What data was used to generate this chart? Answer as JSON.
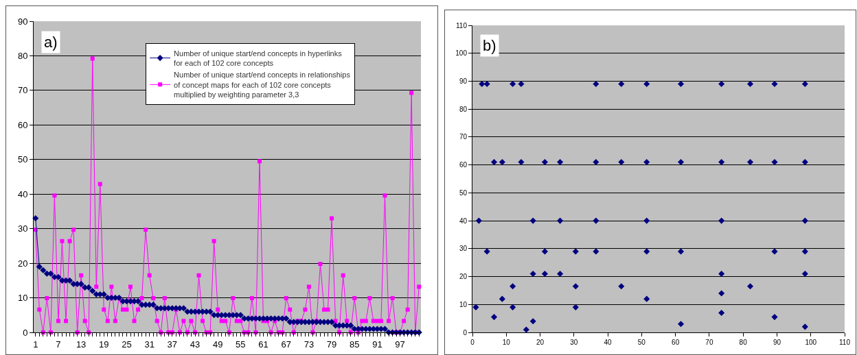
{
  "chart_data": [
    {
      "type": "line",
      "title": "a)",
      "categories": [
        "1",
        null,
        null,
        null,
        null,
        null,
        "7",
        null,
        null,
        null,
        null,
        null,
        "13",
        null,
        null,
        null,
        null,
        null,
        "19",
        null,
        null,
        null,
        null,
        null,
        "25",
        null,
        null,
        null,
        null,
        null,
        "31",
        null,
        null,
        null,
        null,
        null,
        "37",
        null,
        null,
        null,
        null,
        null,
        "43",
        null,
        null,
        null,
        null,
        null,
        "49",
        null,
        null,
        null,
        null,
        null,
        "55",
        null,
        null,
        null,
        null,
        null,
        "61",
        null,
        null,
        null,
        null,
        null,
        "67",
        null,
        null,
        null,
        null,
        null,
        "73",
        null,
        null,
        null,
        null,
        null,
        "79",
        null,
        null,
        null,
        null,
        null,
        "85",
        null,
        null,
        null,
        null,
        null,
        "91",
        null,
        null,
        null,
        null,
        null,
        "97",
        null,
        null,
        null,
        null,
        null
      ],
      "series": [
        {
          "name": "Number of unique start/end concepts in hyperlinks for each of 102 core concepts",
          "color": "#000080",
          "marker": "diamond",
          "values": [
            33,
            19,
            18,
            17,
            17,
            16,
            16,
            15,
            15,
            15,
            14,
            14,
            14,
            13,
            13,
            12,
            11,
            11,
            11,
            10,
            10,
            10,
            10,
            9,
            9,
            9,
            9,
            9,
            8,
            8,
            8,
            8,
            7,
            7,
            7,
            7,
            7,
            7,
            7,
            7,
            6,
            6,
            6,
            6,
            6,
            6,
            6,
            5,
            5,
            5,
            5,
            5,
            5,
            5,
            5,
            4,
            4,
            4,
            4,
            4,
            4,
            4,
            4,
            4,
            4,
            4,
            4,
            3,
            3,
            3,
            3,
            3,
            3,
            3,
            3,
            3,
            3,
            3,
            3,
            2,
            2,
            2,
            2,
            2,
            1,
            1,
            1,
            1,
            1,
            1,
            1,
            1,
            1,
            0,
            0,
            0,
            0,
            0,
            0,
            0,
            0,
            0
          ]
        },
        {
          "name": "Number of unique start/end concepts in relationships of concept maps for each of 102 core concepts multiplied by weighting parameter 3,3",
          "color": "#ff00ff",
          "marker": "square",
          "values": [
            29.7,
            6.6,
            0,
            9.9,
            0,
            39.6,
            3.3,
            26.4,
            3.3,
            26.4,
            29.7,
            0,
            16.5,
            3.3,
            0,
            79.2,
            13.2,
            42.9,
            6.6,
            3.3,
            13.2,
            3.3,
            9.9,
            6.6,
            6.6,
            13.2,
            3.3,
            6.6,
            9.9,
            29.7,
            16.5,
            9.9,
            3.3,
            0,
            9.9,
            0,
            0,
            6.6,
            0,
            3.3,
            0,
            3.3,
            0,
            16.5,
            3.3,
            0,
            0,
            26.4,
            6.6,
            3.3,
            3.3,
            0,
            9.9,
            3.3,
            3.3,
            0,
            0,
            9.9,
            0,
            49.5,
            3.3,
            3.3,
            0,
            3.3,
            0,
            0,
            9.9,
            6.6,
            0,
            3.3,
            3.3,
            6.6,
            13.2,
            0,
            3.3,
            19.8,
            6.6,
            6.6,
            33,
            3.3,
            0,
            16.5,
            3.3,
            0,
            9.9,
            0,
            3.3,
            3.3,
            9.9,
            3.3,
            3.3,
            3.3,
            39.6,
            3.3,
            9.9,
            0,
            0,
            3.3,
            6.6,
            69.3,
            0,
            13.2
          ]
        }
      ],
      "ylim": [
        0,
        90
      ],
      "yticks": [
        0,
        10,
        20,
        30,
        40,
        50,
        60,
        70,
        80,
        90
      ],
      "grid": "y",
      "legend": "top right",
      "line_style": "solid"
    },
    {
      "type": "scatter",
      "title": "b)",
      "series": [
        {
          "color": "#000080",
          "marker": "diamond",
          "x": [
            1,
            1.9,
            2.8,
            4.3,
            4.3,
            6.4,
            6.4,
            8.8,
            8.8,
            11.9,
            11.9,
            11.9,
            14.4,
            14.4,
            15.9,
            17.9,
            17.9,
            17.9,
            21.4,
            21.4,
            21.4,
            25.9,
            25.9,
            25.9,
            30.5,
            30.5,
            30.5,
            36.5,
            36.5,
            36.5,
            36.5,
            44,
            44,
            44,
            51.5,
            51.5,
            51.5,
            51.5,
            51.5,
            61.6,
            61.6,
            61.6,
            61.6,
            73.6,
            73.6,
            73.6,
            73.6,
            73.6,
            73.6,
            82.1,
            82.1,
            82.1,
            89.3,
            89.3,
            89.3,
            89.3,
            98.3,
            98.3,
            98.3,
            98.3,
            98.3,
            98.3
          ],
          "values": [
            9,
            40,
            89,
            89,
            29,
            61,
            5.5,
            61,
            12,
            89,
            16.5,
            9,
            89,
            61,
            1,
            40,
            21,
            4,
            61,
            29,
            21,
            61,
            40,
            21,
            29,
            16.5,
            9,
            89,
            61,
            40,
            29,
            89,
            61,
            16.5,
            89,
            61,
            40,
            29,
            12,
            89,
            61,
            29,
            3,
            89,
            61,
            40,
            21,
            14,
            7,
            89,
            61,
            16.5,
            89,
            61,
            29,
            5.5,
            89,
            61,
            40,
            29,
            21,
            2
          ]
        }
      ],
      "xlim": [
        0,
        110
      ],
      "xticks": [
        0,
        10,
        20,
        30,
        40,
        50,
        60,
        70,
        80,
        90,
        100,
        110
      ],
      "ylim": [
        0,
        110
      ],
      "yticks": [
        0,
        10,
        20,
        30,
        40,
        50,
        60,
        70,
        80,
        90,
        100,
        110
      ],
      "grid": "y",
      "legend": false
    }
  ]
}
